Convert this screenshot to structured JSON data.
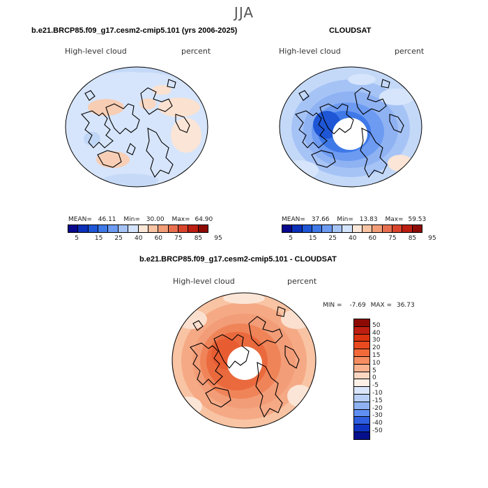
{
  "figure": {
    "season": "JJA"
  },
  "panel_model": {
    "title": "b.e21.BRCP85.f09_g17.cesm2-cmip5.101 (yrs 2006-2025)",
    "variable": "High-level cloud",
    "units": "percent",
    "stats": {
      "mean_label": "MEAN=",
      "mean": "46.11",
      "min_label": "Min=",
      "min": "30.00",
      "max_label": "Max=",
      "max": "64.90"
    }
  },
  "panel_obs": {
    "title": "CLOUDSAT",
    "variable": "High-level cloud",
    "units": "percent",
    "stats": {
      "mean_label": "MEAN=",
      "mean": "37.66",
      "min_label": "Min=",
      "min": "13.83",
      "max_label": "Max=",
      "max": "59.53"
    }
  },
  "panel_diff": {
    "title": "b.e21.BRCP85.f09_g17.cesm2-cmip5.101 - CLOUDSAT",
    "variable": "High-level cloud",
    "units": "percent",
    "stats": {
      "min_label": "MIN =",
      "min": "-7.69",
      "max_label": "MAX =",
      "max": "36.73"
    }
  },
  "colorbar_main": {
    "tick_labels": [
      "5",
      "15",
      "25",
      "40",
      "60",
      "75",
      "85",
      "95"
    ],
    "colors": [
      "#08088c",
      "#0a2fb8",
      "#1e56d6",
      "#3f79e8",
      "#6d9bf2",
      "#a6c3f6",
      "#d3e3fb",
      "#fbe7d8",
      "#f8c4a4",
      "#f29d78",
      "#e87050",
      "#d9452c",
      "#bd1e12",
      "#8c0a04"
    ]
  },
  "colorbar_diff": {
    "labels": [
      "50",
      "40",
      "30",
      "20",
      "15",
      "10",
      "5",
      "0",
      "-5",
      "-10",
      "-15",
      "-20",
      "-30",
      "-40",
      "-50"
    ],
    "colors": [
      "#8c0a04",
      "#bd1e12",
      "#d9330f",
      "#ea4a20",
      "#f26a3a",
      "#f58d60",
      "#f8b28e",
      "#fbd7c2",
      "#fdf0e6",
      "#d9e6fb",
      "#b8d0f8",
      "#8fb2f3",
      "#5f8ff0",
      "#2f5fe0",
      "#0f33c2",
      "#04108c"
    ]
  }
}
